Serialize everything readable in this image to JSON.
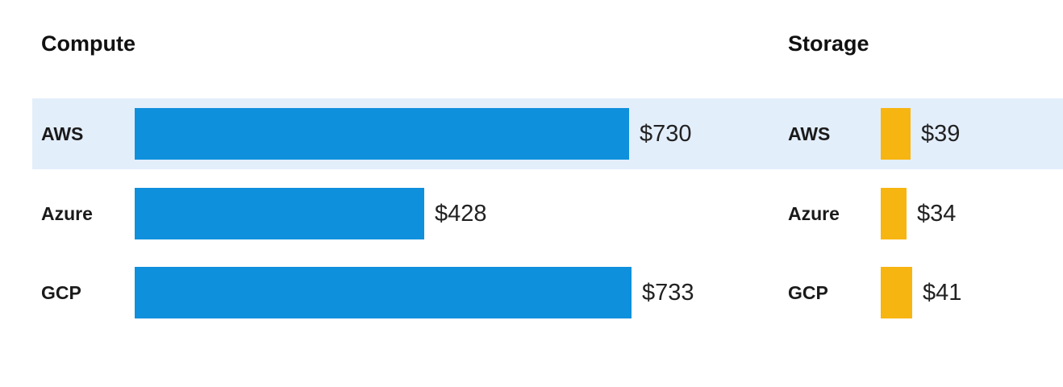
{
  "chart_data": [
    {
      "type": "bar",
      "orientation": "horizontal",
      "title": "Compute",
      "categories": [
        "AWS",
        "Azure",
        "GCP"
      ],
      "values": [
        730,
        428,
        733
      ],
      "value_labels": [
        "$730",
        "$428",
        "$733"
      ],
      "color": "#0f90dc",
      "highlighted_category": "AWS",
      "grid": false
    },
    {
      "type": "bar",
      "orientation": "horizontal",
      "title": "Storage",
      "categories": [
        "AWS",
        "Azure",
        "GCP"
      ],
      "values": [
        39,
        34,
        41
      ],
      "value_labels": [
        "$39",
        "$34",
        "$41"
      ],
      "color": "#f7b511",
      "highlighted_category": "AWS",
      "grid": false
    }
  ],
  "highlight_color": "#e3eefb"
}
